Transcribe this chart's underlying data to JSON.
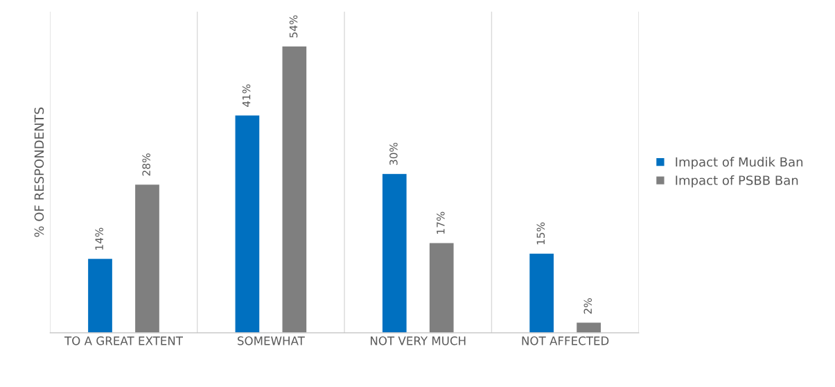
{
  "chart_data": {
    "type": "bar",
    "ylabel": "% OF RESPONDENTS",
    "categories": [
      "TO A GREAT EXTENT",
      "SOMEWHAT",
      "NOT VERY MUCH",
      "NOT AFFECTED"
    ],
    "series": [
      {
        "name": "Impact of Mudik Ban",
        "color": "#0070c0",
        "values": [
          14,
          41,
          30,
          15
        ],
        "value_labels": [
          "14%",
          "41%",
          "30%",
          "15%"
        ]
      },
      {
        "name": "Impact of PSBB Ban",
        "color": "#7f7f7f",
        "values": [
          28,
          54,
          17,
          2
        ],
        "value_labels": [
          "28%",
          "54%",
          "17%",
          "2%"
        ]
      }
    ],
    "grid": "x",
    "legend": "right",
    "tick_labels": "x"
  }
}
